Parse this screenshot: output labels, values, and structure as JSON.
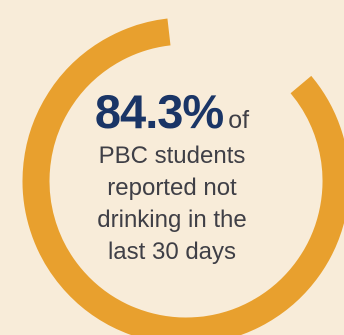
{
  "chart_data": {
    "type": "pie",
    "categories": [
      "reported not drinking in the last 30 days"
    ],
    "values": [
      84.3
    ],
    "value_label": "84.3%",
    "style": "donut-ring",
    "colors": {
      "arc": "#e8a02e",
      "background": "#f8ecd9",
      "headline": "#1a3566",
      "text": "#3f3f46"
    }
  },
  "stat": {
    "value_label": "84.3%",
    "suffix": "of",
    "lines": [
      "PBC students",
      "reported not",
      "drinking in the",
      "last 30 days"
    ]
  }
}
